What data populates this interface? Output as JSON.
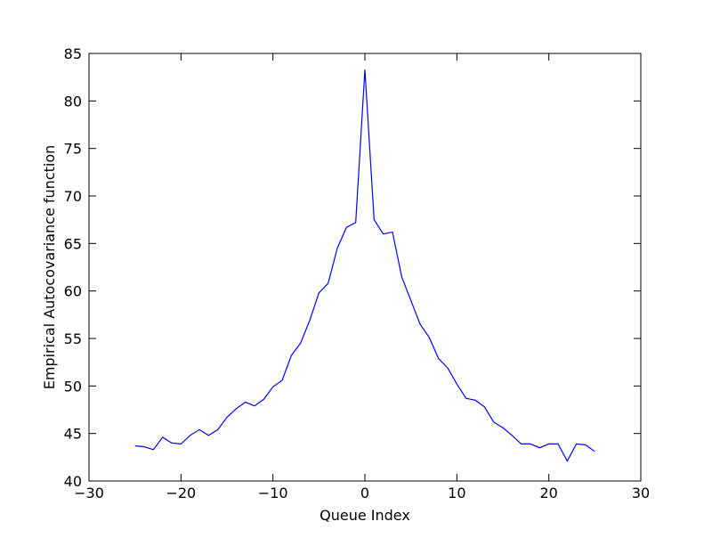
{
  "chart_data": {
    "type": "line",
    "xlabel": "Queue Index",
    "ylabel": "Empirical Autocovariance function",
    "x": [
      -25,
      -24,
      -23,
      -22,
      -21,
      -20,
      -19,
      -18,
      -17,
      -16,
      -15,
      -14,
      -13,
      -12,
      -11,
      -10,
      -9,
      -8,
      -7,
      -6,
      -5,
      -4,
      -3,
      -2,
      -1,
      0,
      1,
      2,
      3,
      4,
      5,
      6,
      7,
      8,
      9,
      10,
      11,
      12,
      13,
      14,
      15,
      16,
      17,
      18,
      19,
      20,
      21,
      22,
      23,
      24,
      25
    ],
    "values": [
      43.7,
      43.6,
      43.3,
      44.6,
      44.0,
      43.9,
      44.8,
      45.4,
      44.8,
      45.4,
      46.7,
      47.6,
      48.3,
      47.9,
      48.6,
      49.9,
      50.6,
      53.2,
      54.5,
      56.9,
      59.8,
      60.8,
      64.5,
      66.7,
      67.2,
      83.3,
      67.5,
      66.0,
      66.2,
      61.5,
      59.0,
      56.5,
      55.1,
      52.9,
      51.9,
      50.2,
      48.7,
      48.5,
      47.8,
      46.2,
      45.6,
      44.8,
      43.9,
      43.9,
      43.5,
      43.9,
      43.9,
      42.1,
      43.9,
      43.8,
      43.1
    ],
    "color": "#0000ff",
    "xlim": [
      -30,
      30
    ],
    "xticks": [
      {
        "value": -30,
        "label": "−30"
      },
      {
        "value": -20,
        "label": "−20"
      },
      {
        "value": -10,
        "label": "−10"
      },
      0,
      10,
      20,
      30
    ],
    "ylim": [
      40,
      85
    ],
    "yticks": [
      40,
      45,
      50,
      55,
      60,
      65,
      70,
      75,
      80,
      85
    ],
    "grid": false
  }
}
